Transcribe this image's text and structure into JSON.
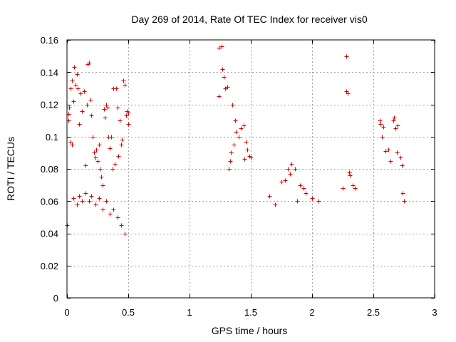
{
  "chart_data": {
    "type": "scatter",
    "title": "Day 269 of 2014, Rate Of TEC Index for receiver vis0",
    "xlabel": "GPS time / hours",
    "ylabel": "ROTI / TECUs",
    "xlim": [
      0,
      3
    ],
    "ylim": [
      0,
      0.16
    ],
    "xticks": [
      0,
      0.5,
      1,
      1.5,
      2,
      2.5,
      3
    ],
    "yticks": [
      0,
      0.02,
      0.04,
      0.06,
      0.08,
      0.1,
      0.12,
      0.14,
      0.16
    ],
    "xtick_labels": [
      "0",
      "0.5",
      "1",
      "1.5",
      "2",
      "2.5",
      "3"
    ],
    "ytick_labels": [
      "0",
      "0.02",
      "0.04",
      "0.06",
      "0.08",
      "0.1",
      "0.12",
      "0.14",
      "0.16"
    ],
    "grid": true,
    "marker": "plus",
    "color": "#e00000",
    "series": [
      {
        "name": "vis0",
        "points": [
          [
            0.0,
            0.045
          ],
          [
            0.01,
            0.114
          ],
          [
            0.01,
            0.11
          ],
          [
            0.02,
            0.118
          ],
          [
            0.03,
            0.13
          ],
          [
            0.03,
            0.097
          ],
          [
            0.04,
            0.135
          ],
          [
            0.04,
            0.095
          ],
          [
            0.05,
            0.122
          ],
          [
            0.06,
            0.143
          ],
          [
            0.07,
            0.132
          ],
          [
            0.08,
            0.139
          ],
          [
            0.09,
            0.13
          ],
          [
            0.1,
            0.108
          ],
          [
            0.11,
            0.127
          ],
          [
            0.12,
            0.116
          ],
          [
            0.14,
            0.128
          ],
          [
            0.15,
            0.082
          ],
          [
            0.16,
            0.12
          ],
          [
            0.17,
            0.145
          ],
          [
            0.18,
            0.146
          ],
          [
            0.19,
            0.123
          ],
          [
            0.2,
            0.113
          ],
          [
            0.21,
            0.1
          ],
          [
            0.22,
            0.09
          ],
          [
            0.23,
            0.087
          ],
          [
            0.24,
            0.092
          ],
          [
            0.25,
            0.085
          ],
          [
            0.26,
            0.095
          ],
          [
            0.27,
            0.08
          ],
          [
            0.28,
            0.075
          ],
          [
            0.29,
            0.07
          ],
          [
            0.3,
            0.117
          ],
          [
            0.31,
            0.112
          ],
          [
            0.32,
            0.12
          ],
          [
            0.33,
            0.118
          ],
          [
            0.34,
            0.1
          ],
          [
            0.35,
            0.093
          ],
          [
            0.36,
            0.1
          ],
          [
            0.37,
            0.08
          ],
          [
            0.38,
            0.13
          ],
          [
            0.39,
            0.083
          ],
          [
            0.4,
            0.13
          ],
          [
            0.41,
            0.118
          ],
          [
            0.42,
            0.088
          ],
          [
            0.43,
            0.11
          ],
          [
            0.44,
            0.095
          ],
          [
            0.45,
            0.098
          ],
          [
            0.46,
            0.135
          ],
          [
            0.47,
            0.132
          ],
          [
            0.48,
            0.113
          ],
          [
            0.49,
            0.116
          ],
          [
            0.5,
            0.115
          ],
          [
            0.5,
            0.108
          ],
          [
            0.05,
            0.062
          ],
          [
            0.08,
            0.058
          ],
          [
            0.1,
            0.063
          ],
          [
            0.12,
            0.06
          ],
          [
            0.15,
            0.065
          ],
          [
            0.18,
            0.06
          ],
          [
            0.2,
            0.063
          ],
          [
            0.23,
            0.058
          ],
          [
            0.26,
            0.062
          ],
          [
            0.29,
            0.055
          ],
          [
            0.32,
            0.06
          ],
          [
            0.35,
            0.052
          ],
          [
            0.38,
            0.055
          ],
          [
            0.41,
            0.05
          ],
          [
            0.44,
            0.045
          ],
          [
            0.47,
            0.04
          ],
          [
            1.24,
            0.155
          ],
          [
            1.26,
            0.156
          ],
          [
            1.27,
            0.142
          ],
          [
            1.28,
            0.137
          ],
          [
            1.29,
            0.13
          ],
          [
            1.31,
            0.131
          ],
          [
            1.24,
            0.125
          ],
          [
            1.35,
            0.12
          ],
          [
            1.37,
            0.11
          ],
          [
            1.38,
            0.103
          ],
          [
            1.4,
            0.1
          ],
          [
            1.42,
            0.105
          ],
          [
            1.44,
            0.107
          ],
          [
            1.46,
            0.097
          ],
          [
            1.47,
            0.092
          ],
          [
            1.33,
            0.085
          ],
          [
            1.34,
            0.09
          ],
          [
            1.36,
            0.095
          ],
          [
            1.32,
            0.08
          ],
          [
            1.45,
            0.086
          ],
          [
            1.49,
            0.088
          ],
          [
            1.5,
            0.087
          ],
          [
            2.28,
            0.15
          ],
          [
            2.28,
            0.128
          ],
          [
            2.29,
            0.127
          ],
          [
            2.3,
            0.078
          ],
          [
            2.31,
            0.076
          ],
          [
            2.25,
            0.068
          ],
          [
            2.33,
            0.07
          ],
          [
            2.35,
            0.068
          ],
          [
            2.55,
            0.11
          ],
          [
            2.56,
            0.108
          ],
          [
            2.57,
            0.1
          ],
          [
            2.58,
            0.106
          ],
          [
            2.6,
            0.091
          ],
          [
            2.62,
            0.092
          ],
          [
            2.64,
            0.085
          ],
          [
            2.66,
            0.11
          ],
          [
            2.67,
            0.112
          ],
          [
            2.68,
            0.105
          ],
          [
            2.7,
            0.107
          ],
          [
            2.72,
            0.087
          ],
          [
            2.73,
            0.082
          ],
          [
            2.74,
            0.065
          ],
          [
            2.75,
            0.06
          ],
          [
            2.69,
            0.09
          ],
          [
            1.65,
            0.063
          ],
          [
            1.7,
            0.058
          ],
          [
            1.75,
            0.072
          ],
          [
            1.8,
            0.08
          ],
          [
            1.83,
            0.083
          ],
          [
            1.86,
            0.08
          ],
          [
            1.9,
            0.07
          ],
          [
            1.95,
            0.065
          ],
          [
            2.0,
            0.062
          ],
          [
            2.05,
            0.06
          ],
          [
            1.78,
            0.073
          ],
          [
            1.82,
            0.077
          ],
          [
            1.88,
            0.06
          ],
          [
            1.93,
            0.068
          ]
        ]
      }
    ]
  }
}
